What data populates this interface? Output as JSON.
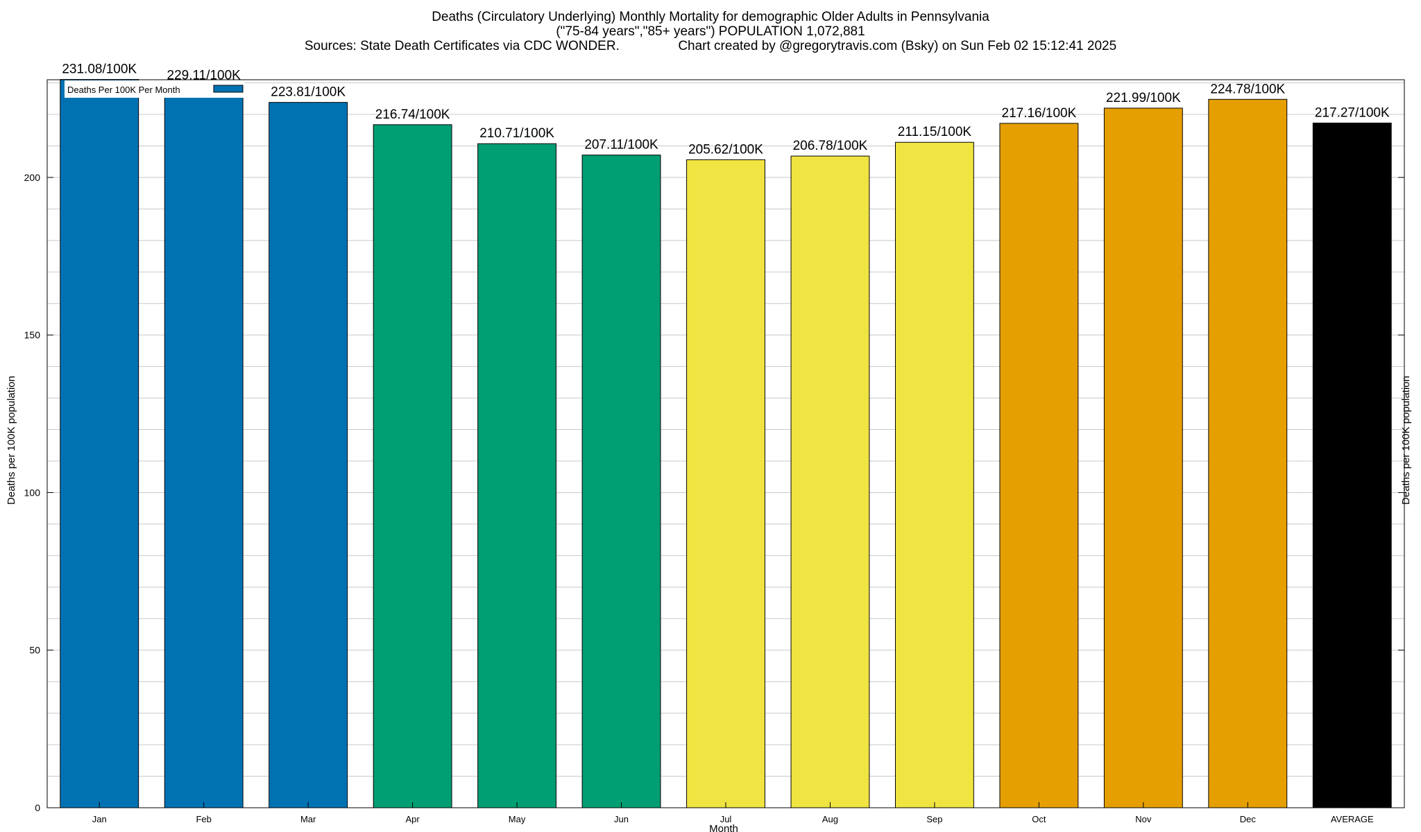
{
  "title": {
    "line1": "Deaths (Circulatory Underlying) Monthly Mortality for demographic Older Adults in Pennsylvania",
    "line2": "(\"75-84 years\",\"85+ years\") POPULATION 1,072,881",
    "line3": "Sources: State Death Certificates via CDC WONDER.                Chart created by @gregorytravis.com (Bsky) on Sun Feb 02 15:12:41 2025"
  },
  "chart_data": {
    "type": "bar",
    "categories": [
      "Jan",
      "Feb",
      "Mar",
      "Apr",
      "May",
      "Jun",
      "Jul",
      "Aug",
      "Sep",
      "Oct",
      "Nov",
      "Dec",
      "AVERAGE"
    ],
    "values": [
      231.08,
      229.11,
      223.81,
      216.74,
      210.71,
      207.11,
      205.62,
      206.78,
      211.15,
      217.16,
      221.99,
      224.78,
      217.27
    ],
    "value_labels": [
      "231.08/100K",
      "229.11/100K",
      "223.81/100K",
      "216.74/100K",
      "210.71/100K",
      "207.11/100K",
      "205.62/100K",
      "206.78/100K",
      "211.15/100K",
      "217.16/100K",
      "221.99/100K",
      "224.78/100K",
      "217.27/100K"
    ],
    "colors": [
      "#0072b2",
      "#0072b2",
      "#0072b2",
      "#009e73",
      "#009e73",
      "#009e73",
      "#f0e442",
      "#f0e442",
      "#f0e442",
      "#e69f00",
      "#e69f00",
      "#e69f00",
      "#000000"
    ],
    "series": [
      {
        "name": "Deaths Per 100K Per Month",
        "color": "#0072b2"
      }
    ],
    "xlabel": "Month",
    "ylabel": "Deaths per 100K population",
    "y2label": "Deaths per 100K population",
    "ylim": [
      0,
      231
    ],
    "yticks": [
      0,
      50,
      100,
      150,
      200
    ],
    "minor_grid_step": 10,
    "grid": true,
    "legend_position": "top-left"
  }
}
